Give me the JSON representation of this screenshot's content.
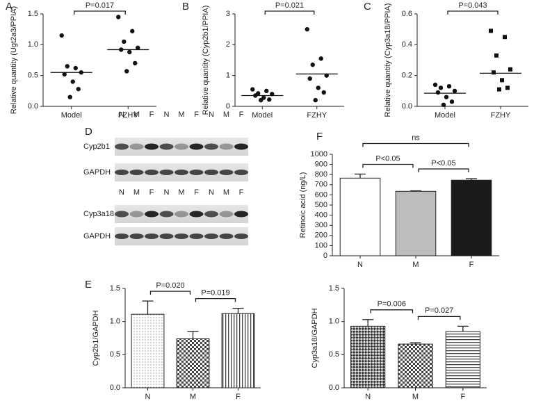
{
  "chart_data": [
    {
      "type": "scatter",
      "panel": "A",
      "ylabel": "Relative quantity (Ugt2a3/PPIA)",
      "categories": [
        "Model",
        "FZHY"
      ],
      "markers": [
        "circle",
        "circle"
      ],
      "points": [
        [
          1.15,
          0.62,
          0.65,
          0.55,
          0.52,
          0.4,
          0.28,
          0.15
        ],
        [
          1.45,
          1.22,
          1.05,
          0.95,
          0.92,
          0.88,
          0.7,
          0.57
        ]
      ],
      "means": [
        0.55,
        0.92
      ],
      "ylim": [
        0,
        1.5
      ],
      "yticks": [
        {
          "value": 0,
          "label": "0.0"
        },
        0.5,
        {
          "value": 1,
          "label": "1.0"
        },
        1.5
      ],
      "brackets": [
        {
          "from": 0,
          "to": 1,
          "label": "P=0.017"
        }
      ]
    },
    {
      "type": "scatter",
      "panel": "B",
      "ylabel": "Relative quantity (Cyp2b1/PPIA)",
      "categories": [
        "Model",
        "FZHY"
      ],
      "markers": [
        "circle",
        "circle"
      ],
      "points": [
        [
          0.55,
          0.5,
          0.42,
          0.4,
          0.35,
          0.28,
          0.22,
          0.2
        ],
        [
          2.5,
          1.55,
          1.35,
          1.0,
          0.9,
          0.6,
          0.45,
          0.2
        ]
      ],
      "means": [
        0.35,
        1.05
      ],
      "ylim": [
        0,
        3
      ],
      "yticks": [
        0,
        1,
        2,
        3
      ],
      "brackets": [
        {
          "from": 0,
          "to": 1,
          "label": "P=0.021"
        }
      ]
    },
    {
      "type": "scatter",
      "panel": "C",
      "ylabel": "Relative quantity (Cyp3a18/PPIA)",
      "categories": [
        "Model",
        "FZHY"
      ],
      "markers": [
        "circle",
        "square"
      ],
      "points": [
        [
          0.14,
          0.13,
          0.12,
          0.1,
          0.09,
          0.06,
          0.03,
          0.01
        ],
        [
          0.49,
          0.45,
          0.33,
          0.24,
          0.22,
          0.17,
          0.12,
          0.11
        ]
      ],
      "means": [
        0.085,
        0.215
      ],
      "ylim": [
        0,
        0.6
      ],
      "yticks": [
        {
          "value": 0,
          "label": "0.0"
        },
        0.2,
        0.4,
        0.6
      ],
      "brackets": [
        {
          "from": 0,
          "to": 1,
          "label": "P=0.043"
        }
      ]
    },
    {
      "type": "bar",
      "panel": "F",
      "ylabel": "Retinoic acid (ng/L)",
      "categories": [
        "N",
        "M",
        "F"
      ],
      "values": [
        765,
        635,
        745
      ],
      "errors": [
        40,
        5,
        15
      ],
      "fills": [
        "#ffffff",
        "#bdbdbd",
        "#1a1a1a"
      ],
      "ylim": [
        0,
        1000
      ],
      "yticks": [
        0,
        100,
        200,
        300,
        400,
        500,
        600,
        700,
        800,
        900,
        1000
      ],
      "brackets": [
        {
          "from": 0,
          "to": 2,
          "label": "ns"
        },
        {
          "from": 0,
          "to": 1,
          "label": "P<0.05"
        },
        {
          "from": 1,
          "to": 2,
          "label": "P<0.05"
        }
      ]
    },
    {
      "type": "bar",
      "panel": "E",
      "ylabel": "Cyp2b1/GAPDH",
      "categories": [
        "N",
        "M",
        "F"
      ],
      "values": [
        1.11,
        0.74,
        1.12
      ],
      "errors": [
        0.2,
        0.11,
        0.08
      ],
      "fills": [
        "dots",
        "checker",
        "vstripes"
      ],
      "ylim": [
        0,
        1.5
      ],
      "yticks": [
        {
          "value": 0,
          "label": "0.0"
        },
        0.5,
        {
          "value": 1,
          "label": "1.0"
        },
        1.5
      ],
      "brackets": [
        {
          "from": 0,
          "to": 1,
          "label": "P=0.020"
        },
        {
          "from": 1,
          "to": 2,
          "label": "P=0.019"
        }
      ]
    },
    {
      "type": "bar",
      "ylabel": "Cyp3a18/GAPDH",
      "categories": [
        "N",
        "M",
        "F"
      ],
      "values": [
        0.93,
        0.66,
        0.85
      ],
      "errors": [
        0.1,
        0.02,
        0.08
      ],
      "fills": [
        "darkchecker",
        "checker",
        "hstripes"
      ],
      "ylim": [
        0,
        1.5
      ],
      "yticks": [
        {
          "value": 0,
          "label": "0.0"
        },
        0.5,
        {
          "value": 1,
          "label": "1.0"
        },
        1.5
      ],
      "brackets": [
        {
          "from": 0,
          "to": 1,
          "label": "P=0.006"
        },
        {
          "from": 1,
          "to": 2,
          "label": "P=0.027"
        }
      ]
    }
  ],
  "blot": {
    "panel": "D",
    "rows": [
      {
        "lanes": [
          "N",
          "M",
          "F",
          "N",
          "M",
          "F",
          "N",
          "M",
          "F"
        ],
        "bands": [
          "Cyp2b1",
          "GAPDH"
        ]
      },
      {
        "lanes": [
          "N",
          "M",
          "F",
          "N",
          "M",
          "F",
          "N",
          "M",
          "F"
        ],
        "bands": [
          "Cyp3a18",
          "GAPDH"
        ]
      }
    ]
  }
}
